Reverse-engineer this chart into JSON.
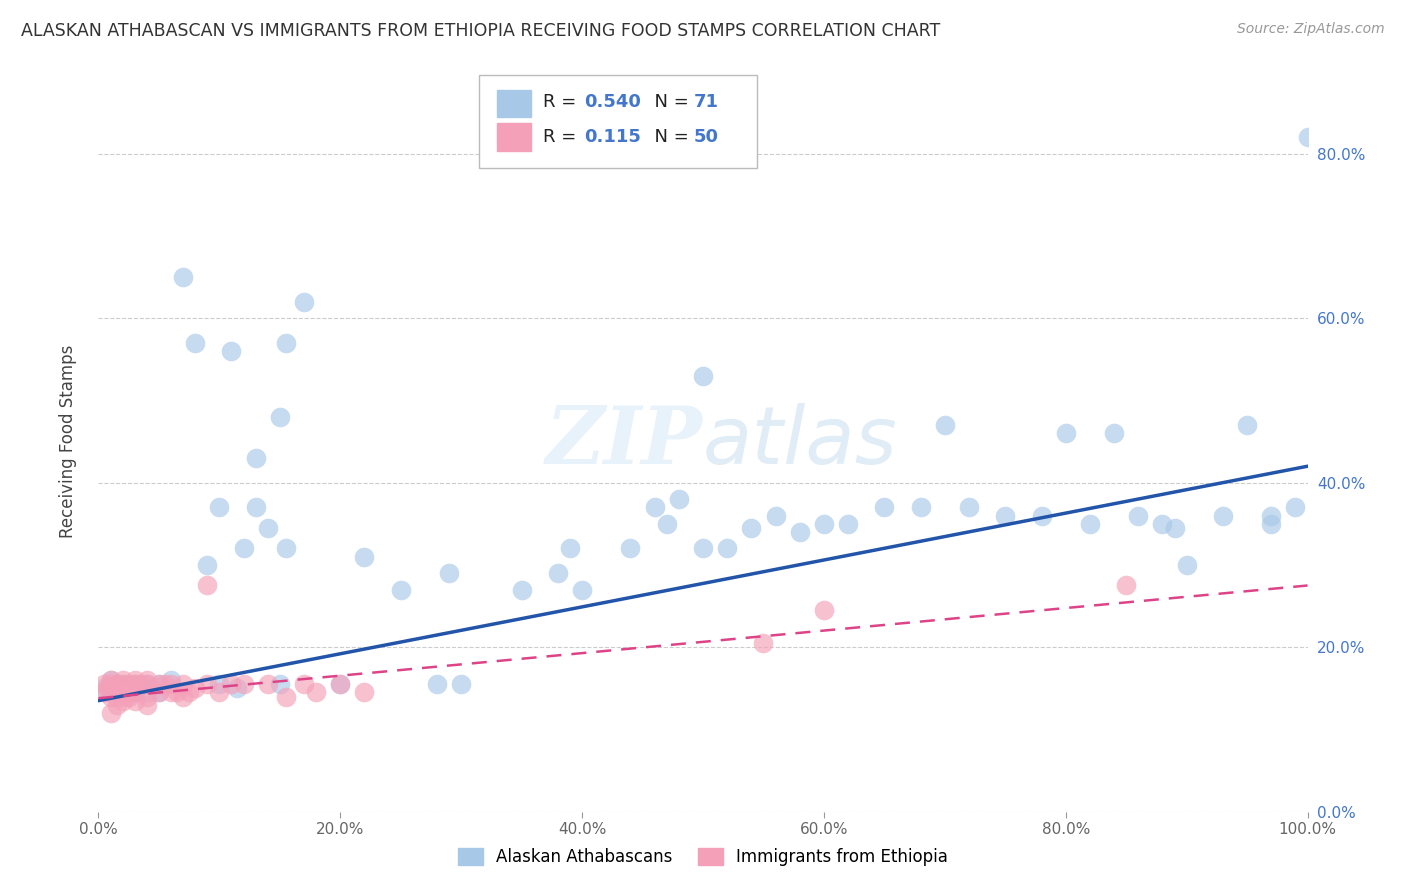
{
  "title": "ALASKAN ATHABASCAN VS IMMIGRANTS FROM ETHIOPIA RECEIVING FOOD STAMPS CORRELATION CHART",
  "source": "Source: ZipAtlas.com",
  "ylabel": "Receiving Food Stamps",
  "legend_label1": "Alaskan Athabascans",
  "legend_label2": "Immigrants from Ethiopia",
  "R1": "0.540",
  "N1": "71",
  "R2": "0.115",
  "N2": "50",
  "color_blue": "#a8c8e8",
  "color_pink": "#f4a0b8",
  "line_color_blue": "#2255aa",
  "line_color_pink": "#dd4488",
  "blue_x": [
    0.005,
    0.01,
    0.01,
    0.015,
    0.02,
    0.02,
    0.025,
    0.03,
    0.03,
    0.04,
    0.04,
    0.05,
    0.05,
    0.06,
    0.07,
    0.08,
    0.09,
    0.1,
    0.11,
    0.115,
    0.12,
    0.13,
    0.15,
    0.155,
    0.17,
    0.2,
    0.22,
    0.25,
    0.28,
    0.29,
    0.3,
    0.35,
    0.38,
    0.39,
    0.4,
    0.44,
    0.46,
    0.47,
    0.48,
    0.5,
    0.52,
    0.54,
    0.56,
    0.58,
    0.6,
    0.62,
    0.65,
    0.68,
    0.7,
    0.72,
    0.75,
    0.78,
    0.8,
    0.82,
    0.84,
    0.86,
    0.88,
    0.9,
    0.93,
    0.95,
    0.97,
    0.99,
    1.0,
    0.15,
    0.13,
    0.1,
    0.14,
    0.155,
    0.5,
    0.89,
    0.97
  ],
  "blue_y": [
    0.15,
    0.145,
    0.16,
    0.15,
    0.145,
    0.155,
    0.15,
    0.145,
    0.155,
    0.155,
    0.145,
    0.155,
    0.145,
    0.16,
    0.65,
    0.57,
    0.3,
    0.155,
    0.56,
    0.15,
    0.32,
    0.43,
    0.155,
    0.57,
    0.62,
    0.155,
    0.31,
    0.27,
    0.155,
    0.29,
    0.155,
    0.27,
    0.29,
    0.32,
    0.27,
    0.32,
    0.37,
    0.35,
    0.38,
    0.32,
    0.32,
    0.345,
    0.36,
    0.34,
    0.35,
    0.35,
    0.37,
    0.37,
    0.47,
    0.37,
    0.36,
    0.36,
    0.46,
    0.35,
    0.46,
    0.36,
    0.35,
    0.3,
    0.36,
    0.47,
    0.36,
    0.37,
    0.82,
    0.48,
    0.37,
    0.37,
    0.345,
    0.32,
    0.53,
    0.345,
    0.35
  ],
  "pink_x": [
    0.005,
    0.005,
    0.008,
    0.01,
    0.01,
    0.01,
    0.01,
    0.015,
    0.015,
    0.015,
    0.02,
    0.02,
    0.02,
    0.02,
    0.025,
    0.025,
    0.025,
    0.03,
    0.03,
    0.03,
    0.03,
    0.035,
    0.04,
    0.04,
    0.04,
    0.04,
    0.05,
    0.05,
    0.055,
    0.06,
    0.06,
    0.065,
    0.07,
    0.07,
    0.075,
    0.08,
    0.09,
    0.09,
    0.1,
    0.11,
    0.12,
    0.14,
    0.155,
    0.17,
    0.18,
    0.2,
    0.22,
    0.55,
    0.6,
    0.85
  ],
  "pink_y": [
    0.145,
    0.155,
    0.15,
    0.12,
    0.14,
    0.155,
    0.16,
    0.13,
    0.14,
    0.155,
    0.135,
    0.145,
    0.155,
    0.16,
    0.14,
    0.155,
    0.145,
    0.135,
    0.145,
    0.155,
    0.16,
    0.155,
    0.14,
    0.155,
    0.16,
    0.13,
    0.145,
    0.155,
    0.155,
    0.145,
    0.155,
    0.145,
    0.14,
    0.155,
    0.145,
    0.15,
    0.275,
    0.155,
    0.145,
    0.155,
    0.155,
    0.155,
    0.14,
    0.155,
    0.145,
    0.155,
    0.145,
    0.205,
    0.245,
    0.275
  ],
  "blue_line_x0": 0.0,
  "blue_line_x1": 1.0,
  "blue_line_y0": 0.135,
  "blue_line_y1": 0.42,
  "pink_line_x0": 0.0,
  "pink_line_x1": 1.0,
  "pink_line_y0": 0.138,
  "pink_line_y1": 0.275,
  "xlim": [
    0.0,
    1.0
  ],
  "ylim": [
    0.0,
    0.9
  ],
  "figsize": [
    14.06,
    8.92
  ],
  "dpi": 100
}
